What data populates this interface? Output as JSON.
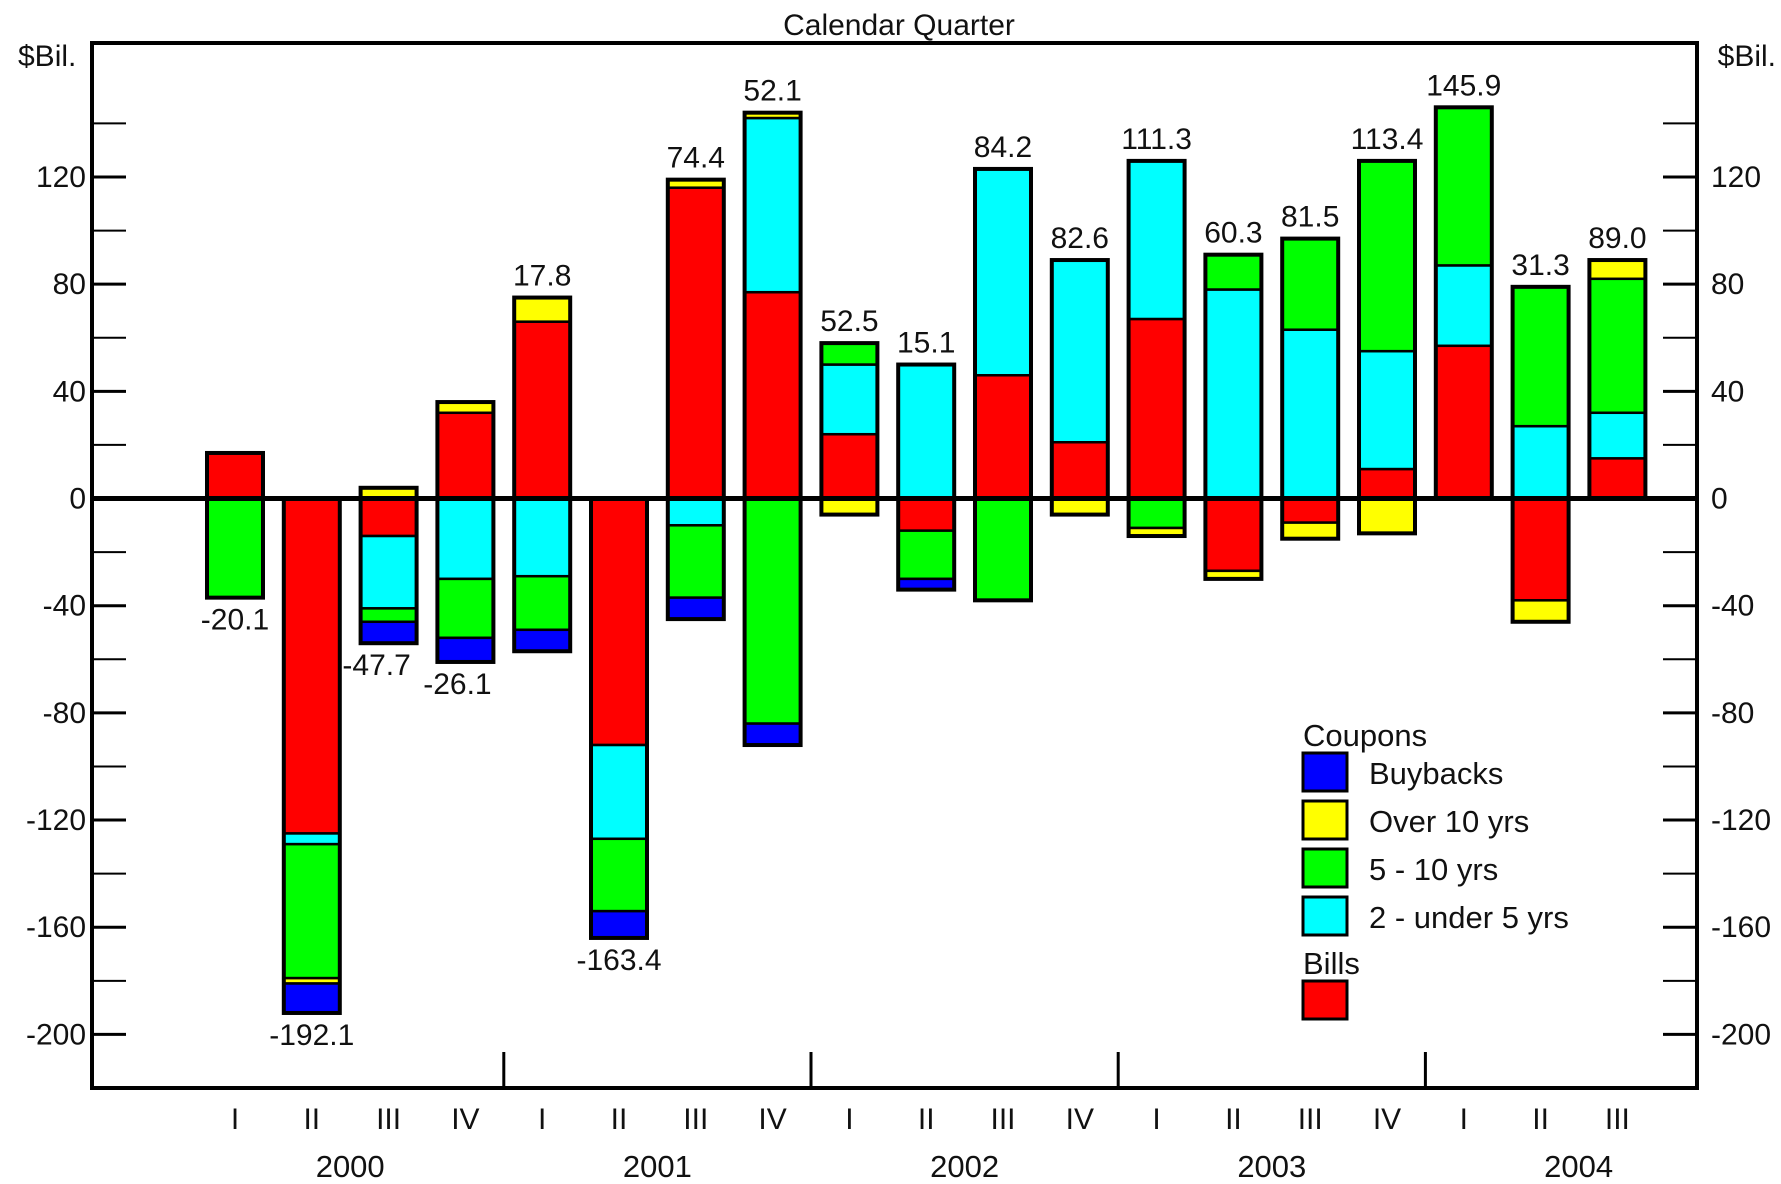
{
  "chart_data": {
    "type": "bar",
    "stacked": true,
    "title": "Calendar Quarter",
    "ylabel_left": "$Bil.",
    "ylabel_right": "$Bil.",
    "ylim": [
      -220,
      170
    ],
    "yticks": [
      -200,
      -160,
      -120,
      -80,
      -40,
      0,
      40,
      80,
      120
    ],
    "categories": [
      "I",
      "II",
      "III",
      "IV",
      "I",
      "II",
      "III",
      "IV",
      "I",
      "II",
      "III",
      "IV",
      "I",
      "II",
      "III",
      "IV",
      "I",
      "II",
      "III"
    ],
    "years": [
      {
        "label": "2000",
        "start": 0,
        "end": 3
      },
      {
        "label": "2001",
        "start": 4,
        "end": 7
      },
      {
        "label": "2002",
        "start": 8,
        "end": 11
      },
      {
        "label": "2003",
        "start": 12,
        "end": 15
      },
      {
        "label": "2004",
        "start": 16,
        "end": 18
      }
    ],
    "totals": [
      "-20.1",
      "-192.1",
      "-47.7",
      "-26.1",
      "17.8",
      "-163.4",
      "74.4",
      "52.1",
      "52.5",
      "15.1",
      "84.2",
      "82.6",
      "111.3",
      "60.3",
      "81.5",
      "113.4",
      "145.9",
      "31.3",
      "89.0"
    ],
    "series": [
      {
        "key": "bills",
        "color": "#ff0000",
        "values": [
          17,
          -125,
          -14,
          32,
          66,
          -92,
          116,
          77,
          24,
          -12,
          46,
          21,
          67,
          -27,
          -9,
          11,
          57,
          -38,
          15
        ]
      },
      {
        "key": "two_to_five",
        "color": "#00ffff",
        "values": [
          0,
          -4,
          -27,
          -30,
          -29,
          -35,
          -10,
          65,
          26,
          50,
          77,
          68,
          59,
          78,
          63,
          44,
          30,
          27,
          17
        ]
      },
      {
        "key": "five_to_ten",
        "color": "#00ff00",
        "values": [
          -37,
          -50,
          -5,
          -22,
          -20,
          -27,
          -27,
          -84,
          8,
          -18,
          -38,
          0,
          -11,
          13,
          34,
          71,
          59,
          52,
          50
        ]
      },
      {
        "key": "over_ten",
        "color": "#ffff00",
        "values": [
          0,
          -2,
          4,
          4,
          9,
          0,
          3,
          2,
          -6,
          0,
          0,
          -6,
          -3,
          -3,
          -6,
          -13,
          0,
          -8,
          7
        ]
      },
      {
        "key": "buybacks",
        "color": "#0000ff",
        "values": [
          0,
          -11,
          -8,
          -9,
          -8,
          -10,
          -8,
          -8,
          0,
          -4,
          0,
          0,
          0,
          0,
          0,
          0,
          0,
          0,
          0
        ]
      }
    ],
    "label_side": [
      "neg",
      "neg",
      "neg",
      "neg",
      "pos",
      "neg",
      "pos",
      "pos",
      "pos",
      "pos",
      "pos",
      "pos",
      "pos",
      "pos",
      "pos",
      "pos",
      "pos",
      "pos",
      "pos"
    ],
    "legend": {
      "position": "bottom-right",
      "groups": [
        {
          "heading": "Coupons",
          "items": [
            {
              "label": "Buybacks",
              "color": "#0000ff"
            },
            {
              "label": "Over 10 yrs",
              "color": "#ffff00"
            },
            {
              "label": "5 - 10 yrs",
              "color": "#00ff00"
            },
            {
              "label": "2 - under 5 yrs",
              "color": "#00ffff"
            }
          ]
        },
        {
          "heading": "Bills",
          "items": [
            {
              "label": "",
              "color": "#ff0000"
            }
          ]
        }
      ]
    }
  }
}
